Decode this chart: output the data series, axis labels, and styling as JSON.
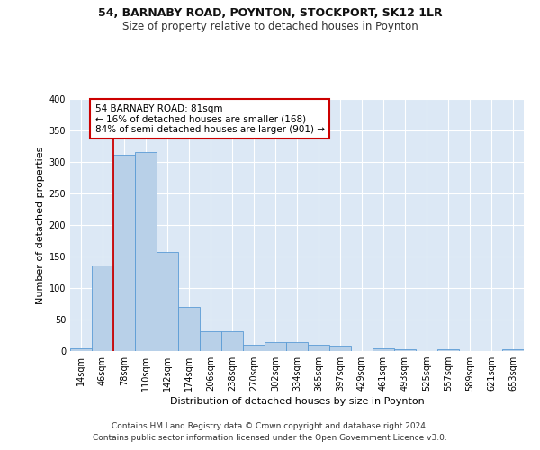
{
  "title_line1": "54, BARNABY ROAD, POYNTON, STOCKPORT, SK12 1LR",
  "title_line2": "Size of property relative to detached houses in Poynton",
  "xlabel": "Distribution of detached houses by size in Poynton",
  "ylabel": "Number of detached properties",
  "footnote_line1": "Contains HM Land Registry data © Crown copyright and database right 2024.",
  "footnote_line2": "Contains public sector information licensed under the Open Government Licence v3.0.",
  "annotation_line1": "54 BARNABY ROAD: 81sqm",
  "annotation_line2": "← 16% of detached houses are smaller (168)",
  "annotation_line3": "84% of semi-detached houses are larger (901) →",
  "bar_color": "#b8d0e8",
  "bar_edge_color": "#5b9bd5",
  "vline_color": "#cc0000",
  "vline_x_index": 2,
  "categories": [
    "14sqm",
    "46sqm",
    "78sqm",
    "110sqm",
    "142sqm",
    "174sqm",
    "206sqm",
    "238sqm",
    "270sqm",
    "302sqm",
    "334sqm",
    "365sqm",
    "397sqm",
    "429sqm",
    "461sqm",
    "493sqm",
    "525sqm",
    "557sqm",
    "589sqm",
    "621sqm",
    "653sqm"
  ],
  "values": [
    4,
    136,
    311,
    316,
    157,
    70,
    32,
    32,
    10,
    14,
    14,
    10,
    8,
    0,
    5,
    3,
    0,
    3,
    0,
    0,
    3
  ],
  "ylim": [
    0,
    400
  ],
  "yticks": [
    0,
    50,
    100,
    150,
    200,
    250,
    300,
    350,
    400
  ],
  "background_color": "#dce8f5",
  "grid_color": "#ffffff",
  "fig_background": "#ffffff",
  "title_fontsize": 9,
  "subtitle_fontsize": 8.5,
  "ylabel_fontsize": 8,
  "xlabel_fontsize": 8,
  "tick_fontsize": 7,
  "annot_fontsize": 7.5,
  "footnote_fontsize": 6.5
}
